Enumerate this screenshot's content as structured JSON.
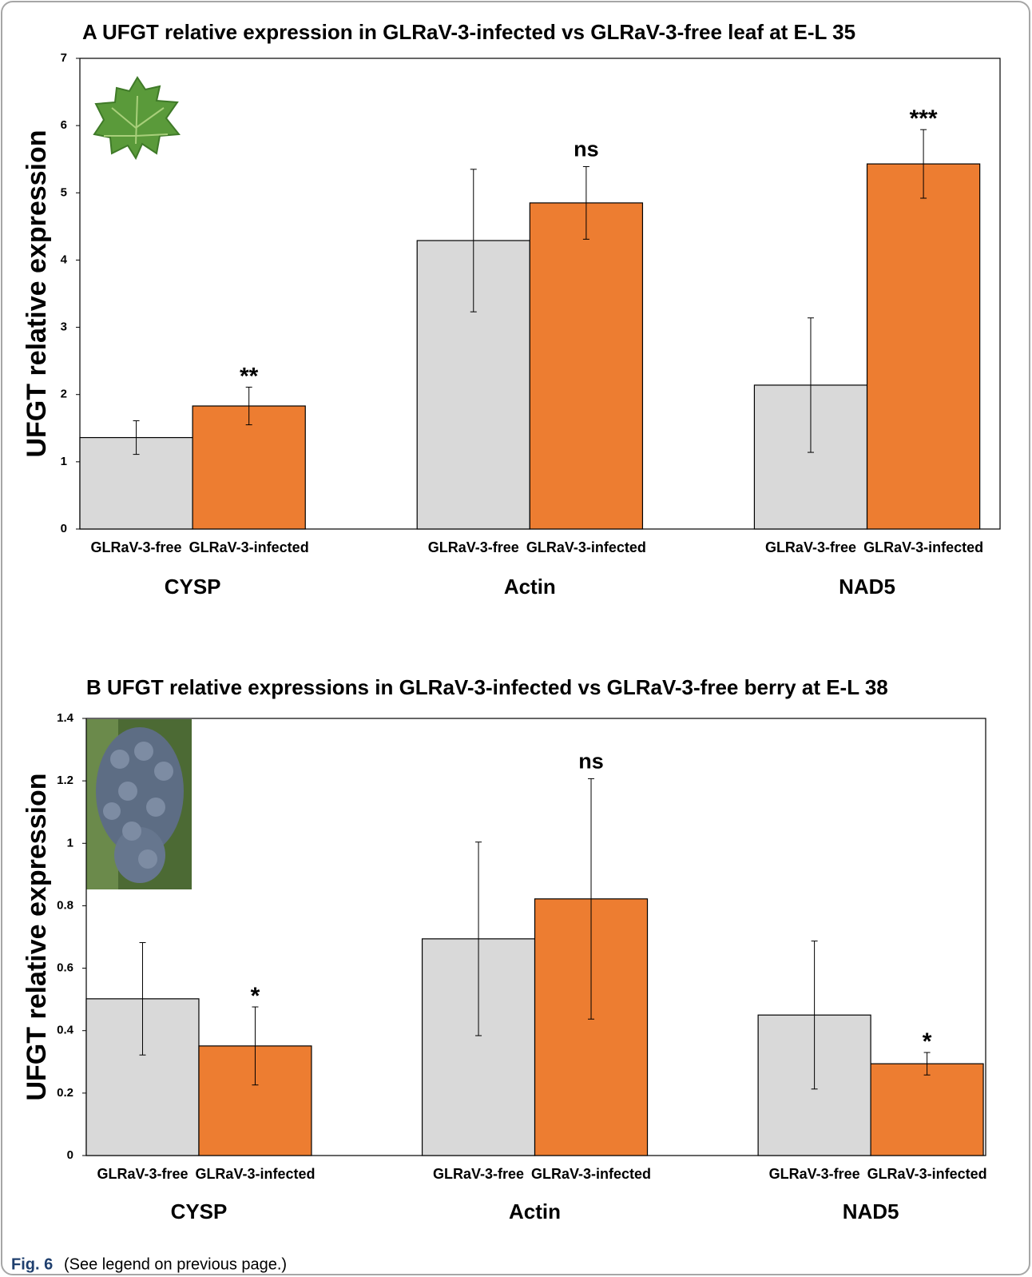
{
  "chart_data": [
    {
      "type": "bar",
      "title": "A  UFGT relative expression in GLRaV-3-infected vs GLRaV-3-free leaf at E-L 35",
      "y_label": "UFGT relative expression",
      "groups": [
        "CYSP",
        "Actin",
        "NAD5"
      ],
      "series": [
        {
          "name": "GLRaV-3-free",
          "color": "#d9d9d9",
          "values": [
            1.36,
            4.29,
            2.14
          ],
          "errors": [
            0.25,
            1.06,
            1.0
          ]
        },
        {
          "name": "GLRaV-3-infected",
          "color": "#ed7d31",
          "values": [
            1.83,
            4.85,
            5.43
          ],
          "errors": [
            0.28,
            0.54,
            0.51
          ]
        }
      ],
      "significance": [
        "**",
        "ns",
        "***"
      ],
      "ylim": [
        0,
        7
      ],
      "yticks": [
        0,
        1,
        2,
        3,
        4,
        5,
        6,
        7
      ]
    },
    {
      "type": "bar",
      "title": "B  UFGT relative expressions in GLRaV-3-infected vs GLRaV-3-free berry at E-L 38",
      "y_label": "UFGT relative expression",
      "groups": [
        "CYSP",
        "Actin",
        "NAD5"
      ],
      "series": [
        {
          "name": "GLRaV-3-free",
          "color": "#d9d9d9",
          "values": [
            0.502,
            0.694,
            0.45
          ],
          "errors": [
            0.18,
            0.31,
            0.237
          ]
        },
        {
          "name": "GLRaV-3-infected",
          "color": "#ed7d31",
          "values": [
            0.351,
            0.822,
            0.294
          ],
          "errors": [
            0.125,
            0.385,
            0.036
          ]
        }
      ],
      "significance": [
        "*",
        "ns",
        "*"
      ],
      "ylim": [
        0,
        1.4
      ],
      "yticks": [
        0,
        0.2,
        0.4,
        0.6,
        0.8,
        1,
        1.2,
        1.4
      ]
    }
  ],
  "caption": {
    "label": "Fig. 6",
    "text": "(See legend on previous page.)"
  }
}
